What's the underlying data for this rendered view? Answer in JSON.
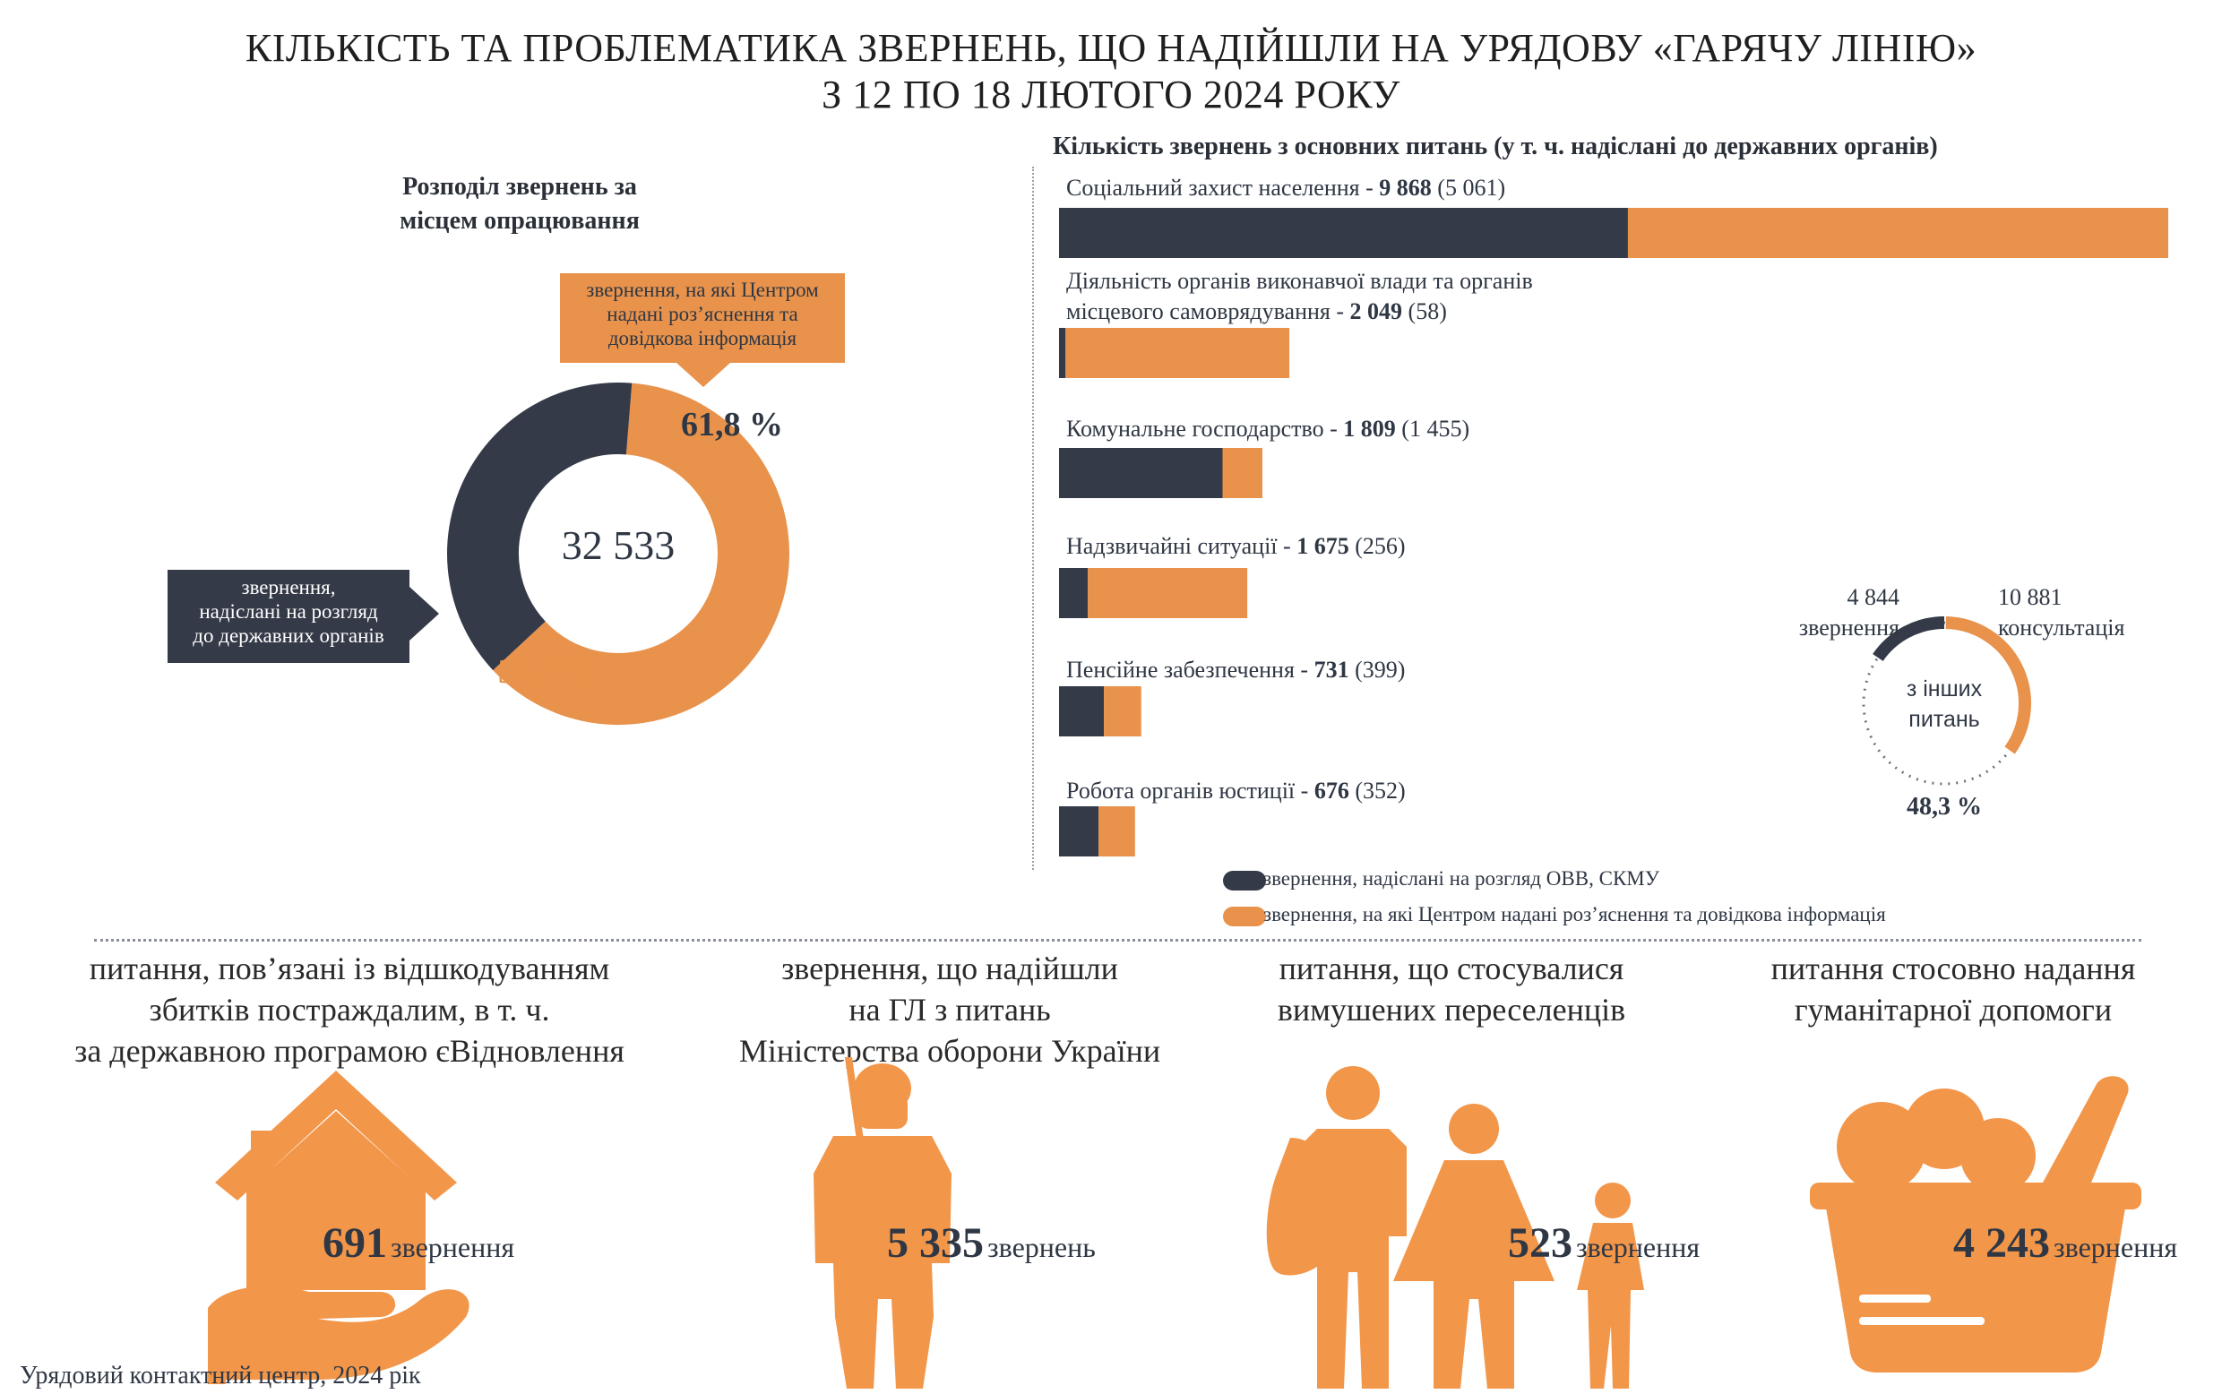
{
  "title_line1": "КІЛЬКІСТЬ ТА ПРОБЛЕМАТИКА ЗВЕРНЕНЬ, ЩО НАДІЙШЛИ НА УРЯДОВУ «ГАРЯЧУ ЛІНІЮ»",
  "title_line2": "З 12 ПО 18 ЛЮТОГО 2024 РОКУ",
  "colors": {
    "dark": "#343a47",
    "orange": "#e8924b",
    "orange_icon": "#f2964a"
  },
  "donut": {
    "title_line1": "Розподіл звернень за",
    "title_line2": "місцем опрацювання",
    "total": "32 533",
    "orange_pct_label": "61,8 %",
    "dark_pct_label": "38,2 %",
    "orange_callout": [
      "звернення, на які Центром",
      "надані роз’яснення та",
      "довідкова інформація"
    ],
    "dark_callout": [
      "звернення,",
      "надіслані на розгляд",
      "до державних органів"
    ]
  },
  "bars": {
    "title": "Кількість звернень з основних питань (у т. ч. надіслані до державних органів)",
    "legend_dark": "звернення, надіслані на розгляд ОВВ, СКМУ",
    "legend_orange": "звернення, на які Центром надані роз’яснення та довідкова інформація"
  },
  "small_donut": {
    "left_value": "4 844",
    "left_label": "звернення",
    "right_value": "10 881",
    "right_label": "консультація",
    "center_line1": "з інших",
    "center_line2": "питань",
    "pct": "48,3 %"
  },
  "chart_data": [
    {
      "type": "pie",
      "title": "Розподіл звернень за місцем опрацювання",
      "total": 32533,
      "labels": [
        "звернення, на які Центром надані роз’яснення та довідкова інформація",
        "звернення, надіслані на розгляд до державних органів"
      ],
      "values": [
        61.8,
        38.2
      ]
    },
    {
      "type": "bar",
      "orientation": "horizontal",
      "stacked": true,
      "title": "Кількість звернень з основних питань (у т. ч. надіслані до державних органів)",
      "categories": [
        {
          "name": "Соціальний захист населення",
          "total_label": "9 868",
          "sent_label": "(5 061)"
        },
        {
          "name_line1": "Діяльність органів виконавчої влади та органів",
          "name": "місцевого самоврядування",
          "total_label": "2 049",
          "sent_label": "(58)"
        },
        {
          "name": "Комунальне господарство",
          "total_label": "1 809",
          "sent_label": "(1 455)"
        },
        {
          "name": "Надзвичайні ситуації",
          "total_label": "1 675",
          "sent_label": "(256)"
        },
        {
          "name": "Пенсійне забезпечення",
          "total_label": "731",
          "sent_label": "(399)"
        },
        {
          "name": "Робота органів юстиції",
          "total_label": "676",
          "sent_label": "(352)"
        }
      ],
      "totals": [
        9868,
        2049,
        1809,
        1675,
        731,
        676
      ],
      "series": [
        {
          "name": "звернення, надіслані на розгляд ОВВ, СКМУ",
          "values": [
            5061,
            58,
            1455,
            256,
            399,
            352
          ]
        },
        {
          "name": "звернення, на які Центром надані роз’яснення та довідкова інформація",
          "values": [
            4807,
            1991,
            354,
            1419,
            332,
            324
          ]
        }
      ]
    },
    {
      "type": "pie",
      "title": "з інших питань",
      "labels": [
        "звернення",
        "консультація"
      ],
      "values": [
        4844,
        10881
      ],
      "pct_label": "48,3 %"
    }
  ],
  "bottom": [
    {
      "title": [
        "питання, пов’язані із відшкодуванням",
        "збитків постраждалим, в т. ч.",
        "за державною програмою єВідновлення"
      ],
      "value": "691",
      "unit": "звернення",
      "icon": "house-in-hand-icon"
    },
    {
      "title": [
        "звернення, що надійшли",
        "на ГЛ з питань",
        "Міністерства оборони України"
      ],
      "value": "5 335",
      "unit": "звернень",
      "icon": "soldier-icon"
    },
    {
      "title": [
        "питання, що стосувалися",
        "вимушених переселенців"
      ],
      "value": "523",
      "unit": "звернення",
      "icon": "displaced-family-icon"
    },
    {
      "title": [
        "питання стосовно надання",
        "гуманітарної допомоги"
      ],
      "value": "4 243",
      "unit": "звернення",
      "icon": "food-basket-icon"
    }
  ],
  "footer": "Урядовий контактний центр, 2024 рік"
}
